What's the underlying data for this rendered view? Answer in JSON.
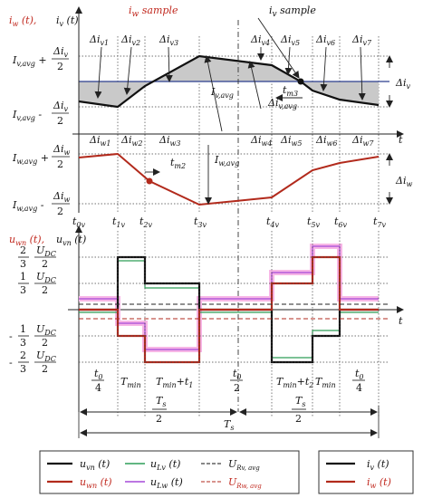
{
  "top": {
    "ylabel_w": "i",
    "ylabel_w_sub": "w",
    "ylabel_v": "i",
    "ylabel_v_sub": "v",
    "ylabel_t": "(t)",
    "iw_sample": "iw sample",
    "iv_sample": "iv sample",
    "iv_avg_plus": "Iv,avg + Δiv/2",
    "iv_avg_minus": "Iv,avg - Δiv/2",
    "iv_avg_mid": "Iv,avg",
    "iv_avg_mid2": "Iv,avg",
    "delta_iv": "Δiv",
    "tm3": "tm3",
    "time_axis": "t",
    "dv_labels": [
      "Δiv1",
      "Δiv2",
      "Δiv3",
      "Δiv4",
      "Δiv5",
      "Δiv6",
      "Δiv7"
    ]
  },
  "mid": {
    "iw_avg_plus": "Iw,avg + Δiw/2",
    "iw_avg_minus": "Iw,avg - Δiw/2",
    "iw_avg_mid": "Iw,avg",
    "delta_iw": "Δiw",
    "tm2": "tm2",
    "dw_labels": [
      "Δiw1",
      "Δiw2",
      "Δiw3",
      "Δiw4",
      "Δiw5",
      "Δiw6",
      "Δiw7"
    ],
    "t_labels": [
      "t0v",
      "t1v",
      "t2v",
      "t3v",
      "t4v",
      "t5v",
      "t6v",
      "t7v"
    ]
  },
  "bottom": {
    "ylabel_1": "uwn (t)",
    "ylabel_2": "uvn (t)",
    "time_axis": "t",
    "levels": [
      "2/3 UDC/2",
      "1/3 UDC/2",
      "- 1/3 UDC/2",
      "- 2/3 UDC/2"
    ],
    "intervals": [
      "t0/4",
      "Tmin",
      "Tmin+t1",
      "t0/2",
      "Tmin+t2",
      "Tmin",
      "t0/4"
    ],
    "ts_half_left": "Ts/2",
    "ts_half_right": "Ts/2",
    "ts": "Ts"
  },
  "legend": {
    "uvn": "uvn (t)",
    "uwn": "uwn (t)",
    "ulv": "uLv (t)",
    "ulw": "uLw (t)",
    "urv": "URv, avg",
    "urw": "URw, avg",
    "iv": "iv (t)",
    "iw": "iw (t)"
  },
  "colors": {
    "black": "#111111",
    "red": "#b22a1c",
    "green": "#2f9e58",
    "violet": "#a64ad8",
    "pink_highlight": "#f7b6e6",
    "grey_fill": "#c9c9c9",
    "blue_line": "#2c3f8e"
  }
}
